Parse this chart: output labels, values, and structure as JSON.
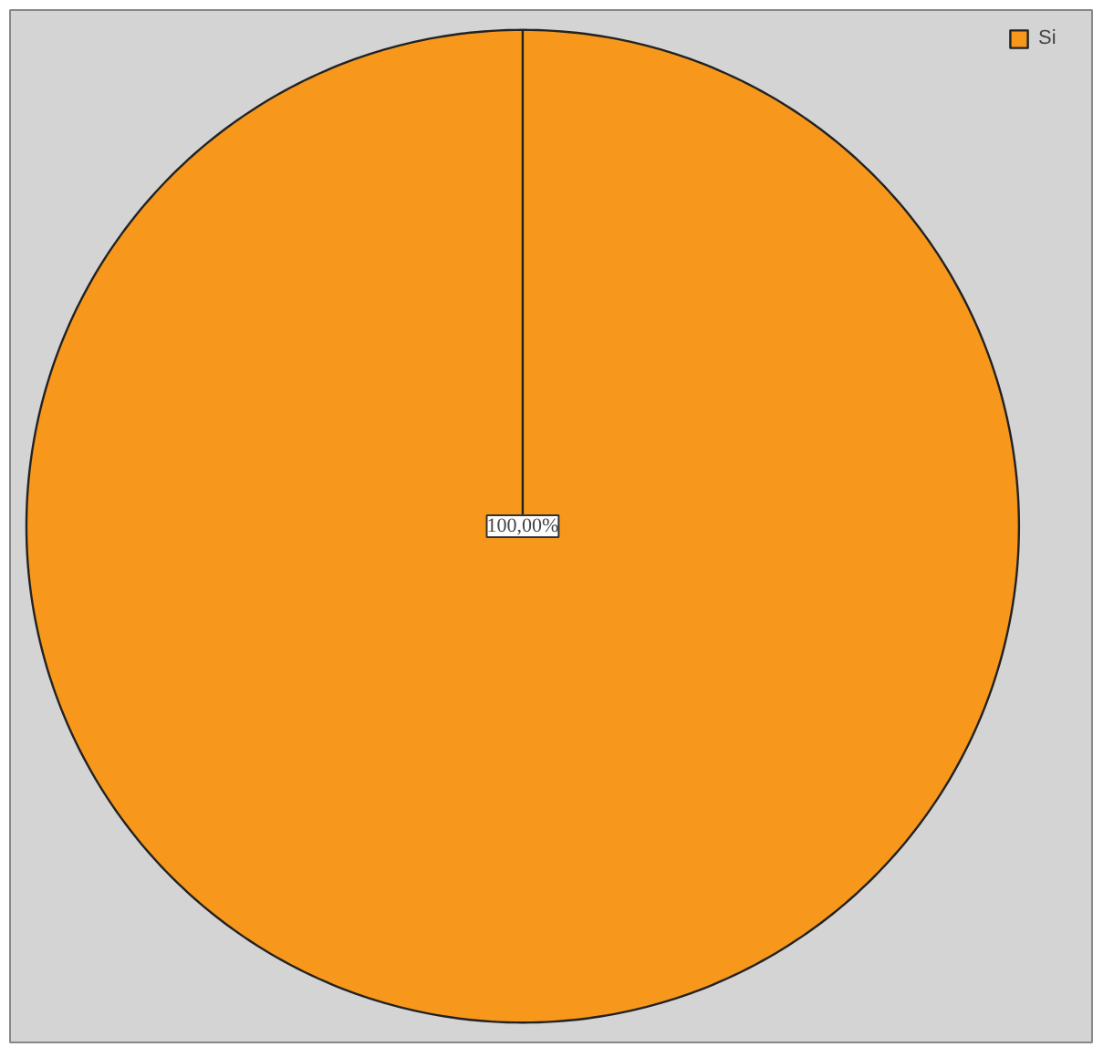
{
  "chart_data": {
    "type": "pie",
    "categories": [
      "Si"
    ],
    "values": [
      100
    ],
    "colors": [
      "#f7981d"
    ],
    "value_labels": [
      "100,00%"
    ],
    "legend": "top right"
  }
}
